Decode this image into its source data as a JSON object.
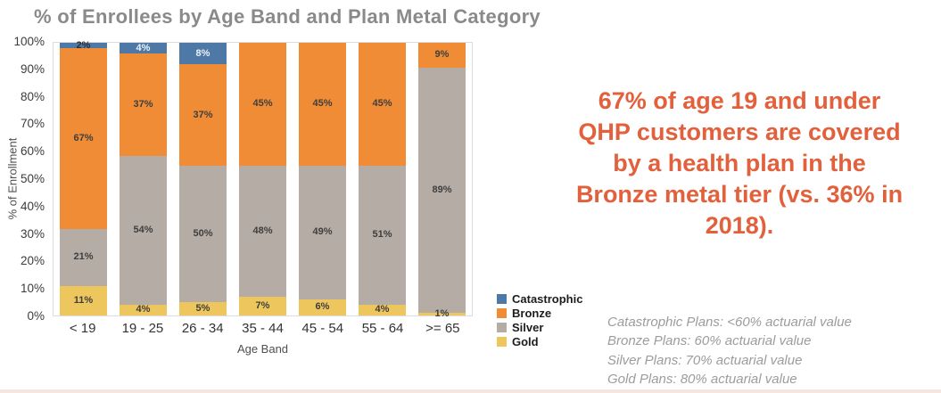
{
  "page": {
    "background": "#FFFFFF",
    "bottom_divider_color": "#F7E5E1"
  },
  "chart_data": {
    "type": "bar",
    "variant": "stacked-percent",
    "title": "% of Enrollees by Age Band and Plan Metal Category",
    "xlabel": "Age Band",
    "ylabel": "% of Enrollment",
    "categories": [
      "< 19",
      "19 - 25",
      "26 - 34",
      "35 - 44",
      "45 - 54",
      "55 - 64",
      ">= 65"
    ],
    "y_ticks": [
      "100%",
      "90%",
      "80%",
      "70%",
      "60%",
      "50%",
      "40%",
      "30%",
      "20%",
      "10%",
      "0%"
    ],
    "ylim": [
      0,
      100
    ],
    "grid": false,
    "legend_position": "bottom-right",
    "stack_order_top_to_bottom": [
      "Catastrophic",
      "Bronze",
      "Silver",
      "Gold"
    ],
    "series": [
      {
        "name": "Catastrophic",
        "color": "#4E79A7",
        "label_color": "#EDF2F9",
        "label_color_overrides": {
          "0": "#2F2F2F"
        },
        "values": [
          2,
          4,
          8,
          0,
          0,
          0,
          0
        ]
      },
      {
        "name": "Bronze",
        "color": "#F08C35",
        "label_color": "#3E3E3E",
        "values": [
          67,
          37,
          37,
          45,
          45,
          45,
          9
        ]
      },
      {
        "name": "Silver",
        "color": "#B5ACA5",
        "label_color": "#3E3E3E",
        "values": [
          21,
          54,
          50,
          48,
          49,
          51,
          89
        ]
      },
      {
        "name": "Gold",
        "color": "#EDC75D",
        "label_color": "#3E3E3E",
        "values": [
          11,
          4,
          5,
          7,
          6,
          4,
          1
        ]
      }
    ]
  },
  "headline": {
    "color": "#E2603B",
    "text": "67% of age 19 and under QHP customers are covered by a health plan in the Bronze metal tier (vs. 36% in 2018).",
    "lines": [
      "67% of age 19 and under",
      "QHP customers are covered",
      "by a health plan in the",
      "Bronze metal tier (vs. 36% in",
      "2018)."
    ]
  },
  "footnotes": {
    "lines": [
      "Catastrophic Plans: <60% actuarial value",
      "Bronze Plans: 60% actuarial value",
      "Silver Plans: 70% actuarial value",
      "Gold Plans: 80% actuarial value"
    ]
  }
}
